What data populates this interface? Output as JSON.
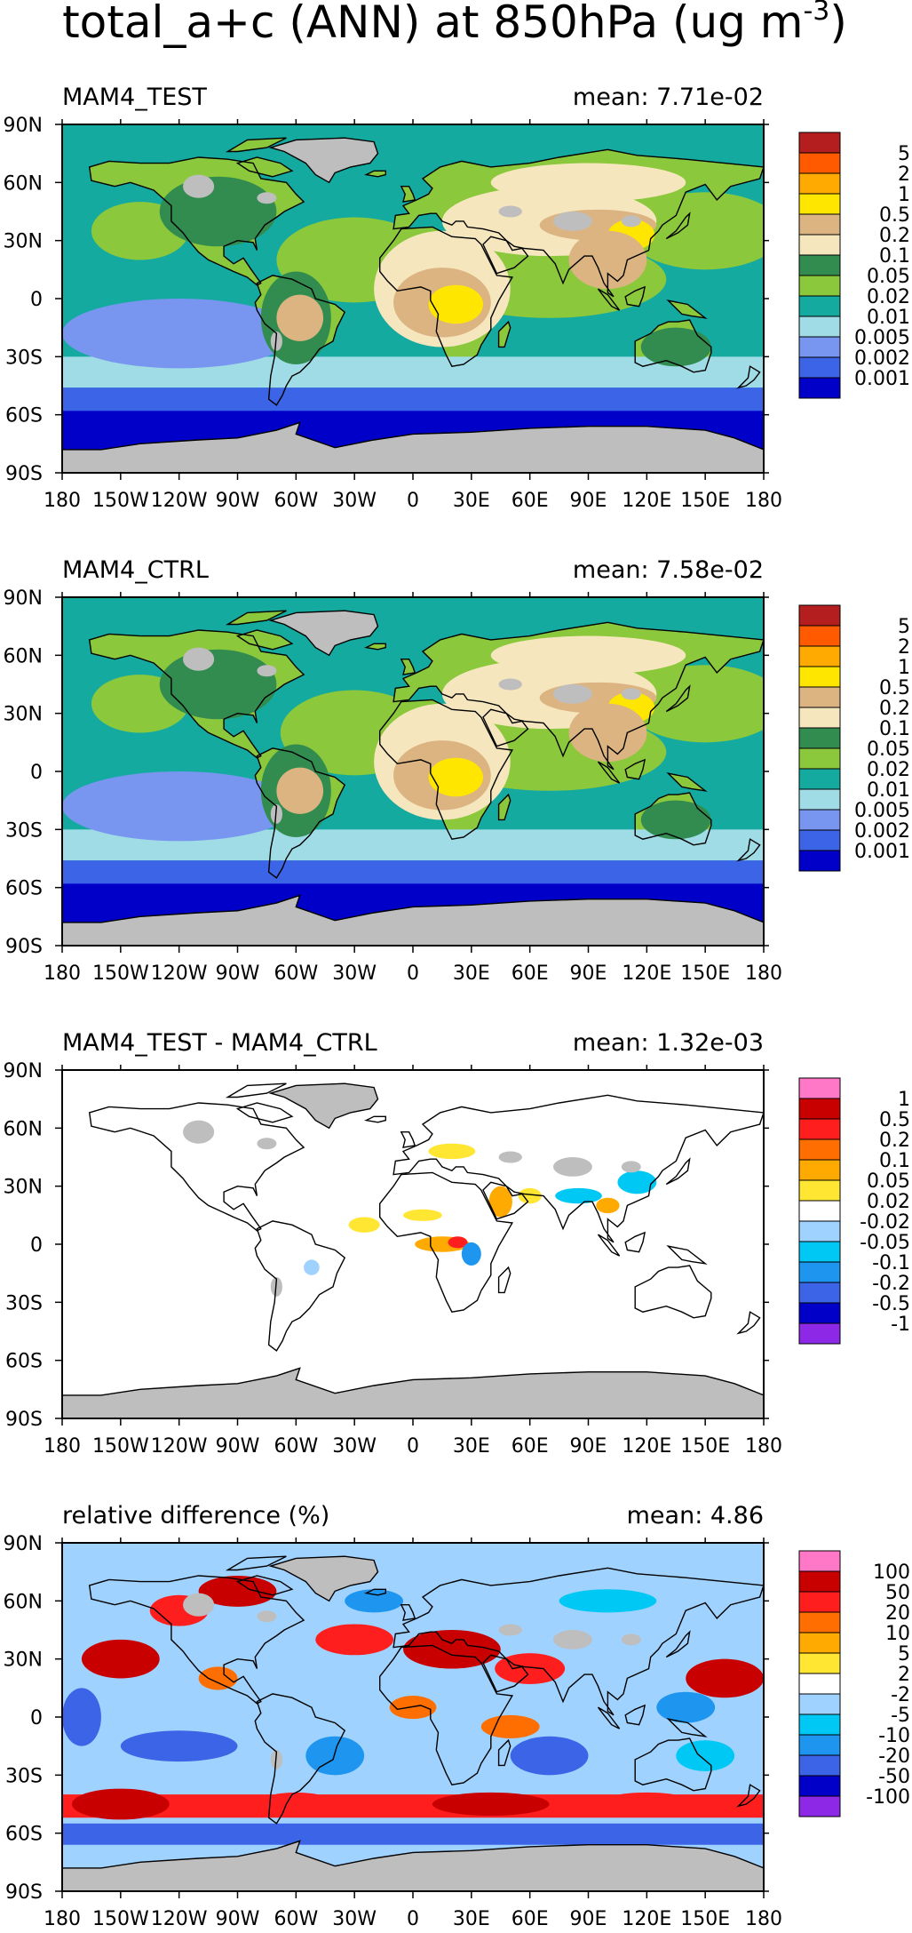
{
  "title_main": "total_a+c (ANN) at 850hPa (ug m",
  "title_exp": "-3",
  "title_close": ")",
  "lon_ticks": [
    "180",
    "150W",
    "120W",
    "90W",
    "60W",
    "30W",
    "0",
    "30E",
    "60E",
    "90E",
    "120E",
    "150E",
    "180"
  ],
  "lat_ticks": [
    "90N",
    "60N",
    "30N",
    "0",
    "30S",
    "60S",
    "90S"
  ],
  "colors": {
    "abs": [
      "#0000c8",
      "#3c64e6",
      "#7896f0",
      "#a0dce6",
      "#14aaa0",
      "#8cc83c",
      "#328c50",
      "#f5e6be",
      "#dcb482",
      "#ffe600",
      "#ffaa00",
      "#ff5a00",
      "#b41e1e"
    ],
    "diff": [
      "#8c28e6",
      "#0000c8",
      "#3c64e6",
      "#1e96f0",
      "#00c8f5",
      "#a0d2ff",
      "#ffffff",
      "#ffe632",
      "#ffaa00",
      "#ff6e00",
      "#ff1e1e",
      "#c80000",
      "#ff78c8"
    ],
    "land_missing": "#bebebe"
  },
  "chart_data": [
    {
      "type": "contour-map",
      "panel": "MAM4_TEST",
      "label": "MAM4_TEST",
      "mean_text": "mean: 7.71e-02",
      "mean": 0.0771,
      "colorbar_levels": [
        "5",
        "2",
        "1",
        "0.5",
        "0.2",
        "0.1",
        "0.05",
        "0.02",
        "0.01",
        "0.005",
        "0.002",
        "0.001"
      ],
      "x_range": [
        -180,
        180
      ],
      "y_range": [
        -90,
        90
      ]
    },
    {
      "type": "contour-map",
      "panel": "MAM4_CTRL",
      "label": "MAM4_CTRL",
      "mean_text": "mean: 7.58e-02",
      "mean": 0.0758,
      "colorbar_levels": [
        "5",
        "2",
        "1",
        "0.5",
        "0.2",
        "0.1",
        "0.05",
        "0.02",
        "0.01",
        "0.005",
        "0.002",
        "0.001"
      ],
      "x_range": [
        -180,
        180
      ],
      "y_range": [
        -90,
        90
      ]
    },
    {
      "type": "contour-map",
      "panel": "difference",
      "label": "MAM4_TEST - MAM4_CTRL",
      "mean_text": "mean: 1.32e-03",
      "mean": 0.00132,
      "colorbar_levels": [
        "1",
        "0.5",
        "0.2",
        "0.1",
        "0.05",
        "0.02",
        "-0.02",
        "-0.05",
        "-0.1",
        "-0.2",
        "-0.5",
        "-1"
      ],
      "x_range": [
        -180,
        180
      ],
      "y_range": [
        -90,
        90
      ]
    },
    {
      "type": "contour-map",
      "panel": "relative-difference",
      "label": "relative difference (%)",
      "mean_text": "mean:  4.86",
      "mean": 4.86,
      "colorbar_levels": [
        "100",
        "50",
        "20",
        "10",
        "5",
        "2",
        "-2",
        "-5",
        "-10",
        "-20",
        "-50",
        "-100"
      ],
      "x_range": [
        -180,
        180
      ],
      "y_range": [
        -90,
        90
      ]
    }
  ]
}
